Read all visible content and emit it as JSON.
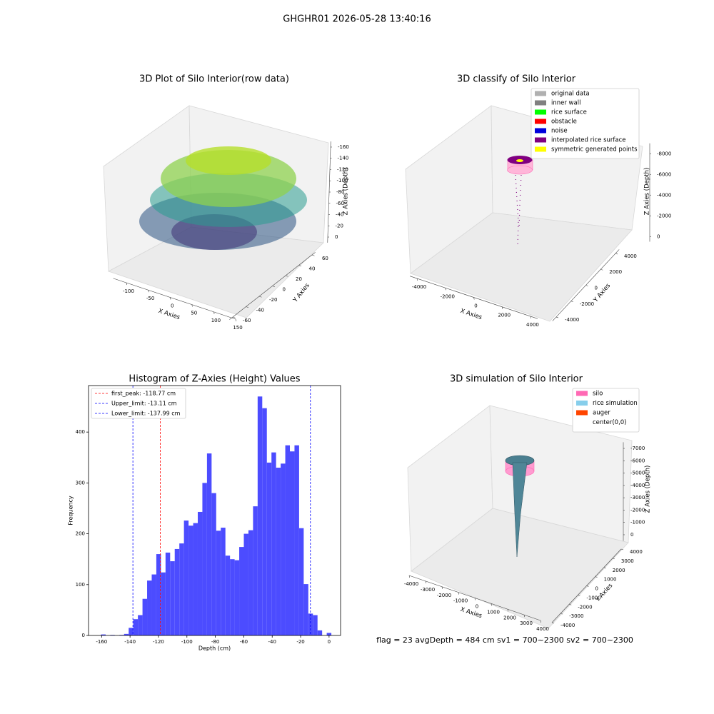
{
  "suptitle": "GHGHR01 2026-05-28 13:40:16",
  "footer": "flag = 23  avgDepth = 484 cm  sv1 = 700~2300  sv2 = 700~2300",
  "chart_data": [
    {
      "type": "scatter3d",
      "title": "3D Plot of Silo Interior(row data)",
      "xlabel": "X Axies",
      "ylabel": "Y Axies",
      "zlabel": "Z Axies (Depth)",
      "xlim": [
        -130,
        150
      ],
      "xticks": [
        -100,
        -50,
        0,
        50,
        100,
        150
      ],
      "ylim": [
        -65,
        65
      ],
      "yticks": [
        -60,
        -40,
        -20,
        0,
        20,
        40,
        60
      ],
      "zlim": [
        -170,
        10
      ],
      "zticks": [
        0,
        -20,
        -40,
        -60,
        -80,
        -100,
        -120,
        -140,
        -160
      ]
    },
    {
      "type": "scatter3d",
      "title": "3D classify of Silo Interior",
      "xlabel": "X Axies",
      "ylabel": "Y Axies",
      "zlabel": "Z Axies (Depth)",
      "xlim": [
        -4500,
        4500
      ],
      "xticks": [
        -4000,
        -2000,
        0,
        2000,
        4000
      ],
      "ylim": [
        -4500,
        4500
      ],
      "yticks": [
        -4000,
        -2000,
        0,
        2000,
        4000
      ],
      "zlim": [
        -9000,
        500
      ],
      "zticks": [
        0,
        -2000,
        -4000,
        -6000,
        -8000
      ],
      "legend": [
        {
          "name": "original data",
          "color": "#b0b0b0"
        },
        {
          "name": "inner wall",
          "color": "#808080"
        },
        {
          "name": "rice surface",
          "color": "#00ff00"
        },
        {
          "name": "obstacle",
          "color": "#ff0000"
        },
        {
          "name": "noise",
          "color": "#0000dd"
        },
        {
          "name": "interpolated rice surface",
          "color": "#800080"
        },
        {
          "name": "symmetric generated points",
          "color": "#ffff00"
        }
      ]
    },
    {
      "type": "histogram",
      "title": "Histogram of Z-Axies (Height) Values",
      "xlabel": "Depth (cm)",
      "ylabel": "Frequency",
      "color": "#4c4cff",
      "bins": [
        -160.4,
        -157.16,
        -153.92,
        -150.68,
        -147.44,
        -144.2,
        -140.96,
        -137.72,
        -134.48,
        -131.24,
        -128,
        -124.76,
        -121.52,
        -118.28,
        -115.04,
        -111.8,
        -108.56,
        -105.32,
        -102.08,
        -98.84,
        -95.6,
        -92.36,
        -89.12,
        -85.88,
        -82.64,
        -79.4,
        -76.16,
        -72.92,
        -69.68,
        -66.44,
        -63.2,
        -59.96,
        -56.72,
        -53.48,
        -50.24,
        -47,
        -43.76,
        -40.52,
        -37.28,
        -34.04,
        -30.8,
        -27.56,
        -24.32,
        -21.08,
        -17.84,
        -14.6,
        -11.36,
        -8.12,
        -4.88,
        -1.64,
        1.6
      ],
      "values": [
        2,
        0,
        1,
        0,
        1,
        3,
        15,
        32,
        40,
        72,
        108,
        120,
        160,
        124,
        163,
        146,
        170,
        181,
        226,
        216,
        221,
        243,
        300,
        358,
        280,
        206,
        212,
        157,
        150,
        148,
        174,
        200,
        207,
        254,
        470,
        447,
        340,
        360,
        330,
        338,
        374,
        362,
        374,
        211,
        101,
        43,
        40,
        10,
        0,
        5
      ],
      "xlim": [
        -169.2,
        8.1
      ],
      "xticks": [
        -160,
        -140,
        -120,
        -100,
        -80,
        -60,
        -40,
        -20,
        0
      ],
      "ylim": [
        0,
        491.5
      ],
      "yticks": [
        0,
        100,
        200,
        300,
        400
      ],
      "vlines": [
        {
          "label": "first_peak: -118.77 cm",
          "value": -118.77,
          "color": "#ff0000"
        },
        {
          "label": "Upper_limit: -13.11 cm",
          "value": -13.11,
          "color": "#0000ff"
        },
        {
          "label": "Lower_limit: -137.99 cm",
          "value": -137.99,
          "color": "#0000ff"
        }
      ]
    },
    {
      "type": "surface3d",
      "title": "3D simulation of Silo Interior",
      "xlabel": "X Axies",
      "ylabel": "Y Axies",
      "zlabel": "Z Axies (Depth)",
      "xlim": [
        -4000,
        4000
      ],
      "xticks": [
        -4000,
        -3000,
        -2000,
        -1000,
        0,
        1000,
        2000,
        3000,
        4000
      ],
      "ylim": [
        -4000,
        4000
      ],
      "yticks": [
        -4000,
        -3000,
        -2000,
        -1000,
        0,
        1000,
        2000,
        3000,
        4000
      ],
      "zlim": [
        -7500,
        500
      ],
      "zticks": [
        0,
        -1000,
        -2000,
        -3000,
        -4000,
        -5000,
        -6000,
        -7000
      ],
      "legend": [
        {
          "name": "silo",
          "color": "#ff69b4"
        },
        {
          "name": "rice simulation",
          "color": "#87ceeb"
        },
        {
          "name": "auger",
          "color": "#ff4500"
        },
        {
          "name": "center(0,0)"
        }
      ]
    }
  ]
}
